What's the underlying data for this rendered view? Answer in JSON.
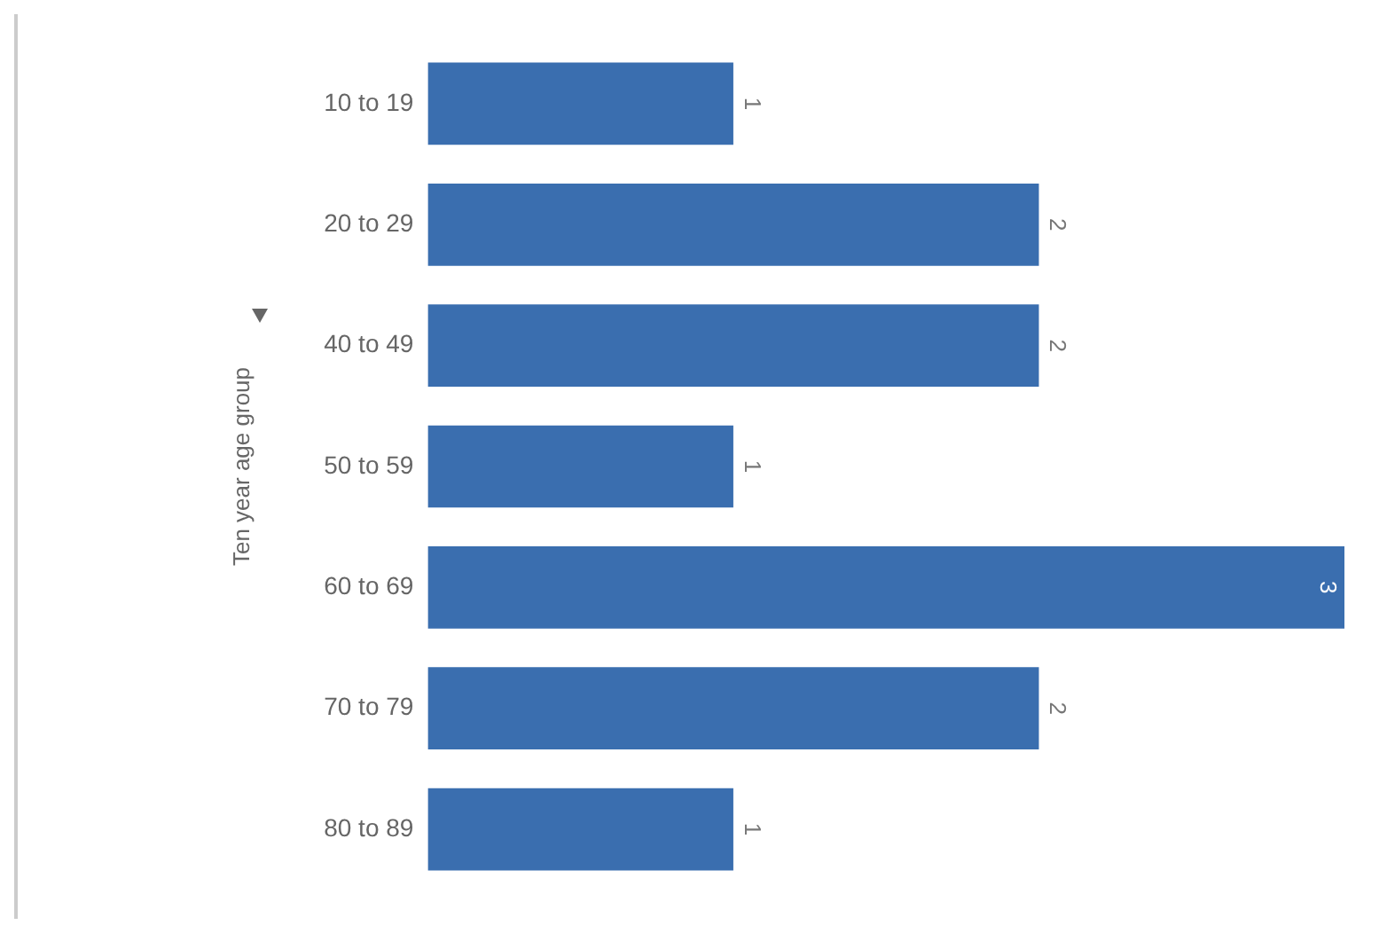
{
  "chart_data": {
    "type": "bar",
    "orientation": "horizontal",
    "ylabel": "Ten year age group",
    "categories": [
      "10 to 19",
      "20 to 29",
      "40 to 49",
      "50 to 59",
      "60 to 69",
      "70 to 79",
      "80 to 89"
    ],
    "values": [
      1,
      2,
      2,
      1,
      3,
      2,
      1
    ],
    "color": "#3a6eaf",
    "data_labels": true,
    "grid": false,
    "legend": false,
    "tick_labels": "y"
  }
}
